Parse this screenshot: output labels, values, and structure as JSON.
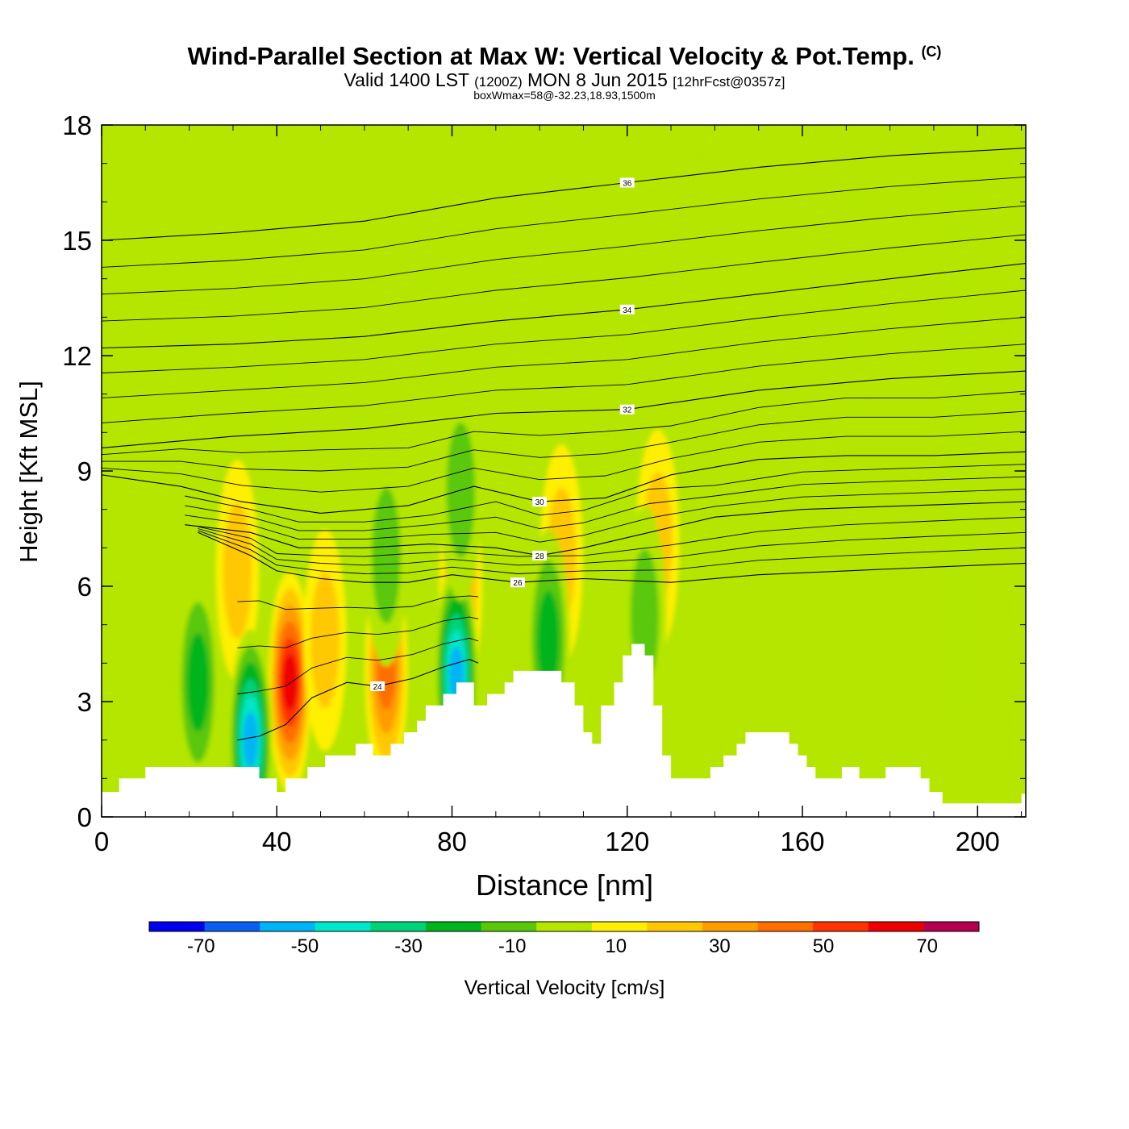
{
  "header": {
    "title": "Wind-Parallel Section at Max W: Vertical Velocity & Pot.Temp.",
    "copyright": "(C)",
    "valid_prefix": "Valid 1400 LST",
    "valid_utc": "(1200Z)",
    "valid_date": "MON 8 Jun 2015",
    "forecast": "[12hrFcst@0357z]",
    "subtitle": "boxWmax=58@-32.23,18.93,1500m"
  },
  "colors": {
    "background_field": "#b4e600",
    "terrain": "#ffffff",
    "isentrope": "#000000",
    "palette": [
      "#0000ee",
      "#0a5ff0",
      "#00b4f5",
      "#00e6c8",
      "#00d27a",
      "#00b41e",
      "#5ac80a",
      "#b4e600",
      "#ffef00",
      "#ffc800",
      "#ff9c00",
      "#ff6e00",
      "#ff3200",
      "#ee0000",
      "#b4004e"
    ]
  },
  "chart_data": {
    "type": "heatmap",
    "title": "Wind-Parallel Section at Max W: Vertical Velocity & Pot.Temp.",
    "xlabel": "Distance [nm]",
    "ylabel": "Height [Kft MSL]",
    "xlim": [
      0,
      211
    ],
    "ylim": [
      0,
      18
    ],
    "x_ticks": [
      "0",
      "40",
      "80",
      "120",
      "160",
      "200"
    ],
    "y_ticks": [
      "0",
      "3",
      "6",
      "9",
      "12",
      "15",
      "18"
    ],
    "colorbar": {
      "label": "Vertical Velocity [cm/s]",
      "boundaries": [
        -80,
        -70,
        -60,
        -50,
        -40,
        -30,
        -20,
        -10,
        0,
        10,
        20,
        30,
        40,
        50,
        60,
        70,
        80
      ],
      "tick_labels": [
        "-70",
        "-50",
        "-30",
        "-10",
        "10",
        "30",
        "50",
        "70"
      ]
    },
    "terrain_profile": [
      [
        0,
        0.65
      ],
      [
        4,
        0.65
      ],
      [
        4,
        1.0
      ],
      [
        10,
        1.0
      ],
      [
        10,
        1.3
      ],
      [
        36,
        1.3
      ],
      [
        36,
        1.0
      ],
      [
        40,
        1.0
      ],
      [
        40,
        0.65
      ],
      [
        42,
        0.65
      ],
      [
        42,
        1.0
      ],
      [
        47,
        1.0
      ],
      [
        47,
        1.3
      ],
      [
        51,
        1.3
      ],
      [
        51,
        1.6
      ],
      [
        58,
        1.6
      ],
      [
        58,
        1.9
      ],
      [
        62,
        1.9
      ],
      [
        62,
        1.6
      ],
      [
        66,
        1.6
      ],
      [
        66,
        1.9
      ],
      [
        69,
        1.9
      ],
      [
        69,
        2.2
      ],
      [
        72,
        2.2
      ],
      [
        72,
        2.5
      ],
      [
        74,
        2.5
      ],
      [
        74,
        2.9
      ],
      [
        78,
        2.9
      ],
      [
        78,
        3.2
      ],
      [
        81,
        3.2
      ],
      [
        81,
        3.5
      ],
      [
        85,
        3.5
      ],
      [
        85,
        2.9
      ],
      [
        88,
        2.9
      ],
      [
        88,
        3.2
      ],
      [
        92,
        3.2
      ],
      [
        92,
        3.5
      ],
      [
        94,
        3.5
      ],
      [
        94,
        3.8
      ],
      [
        105,
        3.8
      ],
      [
        105,
        3.5
      ],
      [
        108,
        3.5
      ],
      [
        108,
        2.9
      ],
      [
        110,
        2.9
      ],
      [
        110,
        2.2
      ],
      [
        112,
        2.2
      ],
      [
        112,
        1.9
      ],
      [
        114,
        1.9
      ],
      [
        114,
        2.9
      ],
      [
        117,
        2.9
      ],
      [
        117,
        3.5
      ],
      [
        119,
        3.5
      ],
      [
        119,
        4.2
      ],
      [
        121,
        4.2
      ],
      [
        121,
        4.5
      ],
      [
        124,
        4.5
      ],
      [
        124,
        4.2
      ],
      [
        126,
        4.2
      ],
      [
        126,
        2.9
      ],
      [
        128,
        2.9
      ],
      [
        128,
        1.6
      ],
      [
        130,
        1.6
      ],
      [
        130,
        1.0
      ],
      [
        139,
        1.0
      ],
      [
        139,
        1.3
      ],
      [
        142,
        1.3
      ],
      [
        142,
        1.6
      ],
      [
        145,
        1.6
      ],
      [
        145,
        1.9
      ],
      [
        147,
        1.9
      ],
      [
        147,
        2.2
      ],
      [
        157,
        2.2
      ],
      [
        157,
        1.9
      ],
      [
        159,
        1.9
      ],
      [
        159,
        1.6
      ],
      [
        161,
        1.6
      ],
      [
        161,
        1.3
      ],
      [
        163,
        1.3
      ],
      [
        163,
        1.0
      ],
      [
        169,
        1.0
      ],
      [
        169,
        1.3
      ],
      [
        173,
        1.3
      ],
      [
        173,
        1.0
      ],
      [
        179,
        1.0
      ],
      [
        179,
        1.3
      ],
      [
        187,
        1.3
      ],
      [
        187,
        1.0
      ],
      [
        189,
        1.0
      ],
      [
        189,
        0.65
      ],
      [
        192,
        0.65
      ],
      [
        192,
        0.35
      ],
      [
        210,
        0.35
      ],
      [
        210,
        0.6
      ],
      [
        211,
        0.6
      ]
    ],
    "updraft_cores": [
      {
        "x": 43,
        "y": 3.5,
        "peak": 60
      },
      {
        "x": 65,
        "y": 3.8,
        "peak": 40
      },
      {
        "x": 82,
        "y": 6.0,
        "peak": 30
      },
      {
        "x": 31,
        "y": 6.4,
        "peak": 20
      },
      {
        "x": 105,
        "y": 6.8,
        "peak": 20
      },
      {
        "x": 127,
        "y": 7.2,
        "peak": 15
      },
      {
        "x": 51,
        "y": 4.6,
        "peak": 20
      }
    ],
    "downdraft_cores": [
      {
        "x": 34,
        "y": 2.0,
        "peak": -60
      },
      {
        "x": 81,
        "y": 3.7,
        "peak": -55
      },
      {
        "x": 102,
        "y": 4.6,
        "peak": -30
      },
      {
        "x": 22,
        "y": 3.5,
        "peak": -25
      },
      {
        "x": 65,
        "y": 6.8,
        "peak": -20
      },
      {
        "x": 82,
        "y": 8.5,
        "peak": -20
      },
      {
        "x": 124,
        "y": 5.2,
        "peak": -20
      }
    ],
    "theta_contours": [
      {
        "label": "24",
        "pts": [
          [
            31,
            2.0
          ],
          [
            36,
            2.1
          ],
          [
            42,
            2.4
          ],
          [
            48,
            3.1
          ],
          [
            56,
            3.5
          ],
          [
            63,
            3.4
          ],
          [
            71,
            3.6
          ],
          [
            78,
            3.9
          ],
          [
            84,
            4.1
          ],
          [
            86,
            4.0
          ]
        ]
      },
      {
        "label": "26",
        "pts": [
          [
            22,
            7.4
          ],
          [
            34,
            6.8
          ],
          [
            40,
            6.4
          ],
          [
            50,
            6.2
          ],
          [
            60,
            6.1
          ],
          [
            70,
            6.1
          ],
          [
            80,
            6.3
          ],
          [
            95,
            6.1
          ],
          [
            110,
            6.2
          ],
          [
            130,
            6.1
          ],
          [
            150,
            6.3
          ],
          [
            170,
            6.4
          ],
          [
            190,
            6.5
          ],
          [
            211,
            6.6
          ]
        ]
      },
      {
        "label": "28",
        "pts": [
          [
            19,
            7.6
          ],
          [
            34,
            7.4
          ],
          [
            45,
            7.0
          ],
          [
            60,
            7.0
          ],
          [
            75,
            7.1
          ],
          [
            90,
            7.0
          ],
          [
            100,
            6.8
          ],
          [
            110,
            7.0
          ],
          [
            125,
            7.4
          ],
          [
            140,
            7.8
          ],
          [
            160,
            8.0
          ],
          [
            185,
            8.1
          ],
          [
            211,
            8.2
          ]
        ]
      },
      {
        "label": "30",
        "pts": [
          [
            0,
            8.9
          ],
          [
            18,
            8.6
          ],
          [
            32,
            8.2
          ],
          [
            50,
            7.9
          ],
          [
            70,
            8.1
          ],
          [
            85,
            8.6
          ],
          [
            100,
            8.2
          ],
          [
            115,
            8.3
          ],
          [
            130,
            8.9
          ],
          [
            150,
            9.3
          ],
          [
            170,
            9.4
          ],
          [
            190,
            9.4
          ],
          [
            211,
            9.5
          ]
        ]
      },
      {
        "label": "32",
        "pts": [
          [
            0,
            9.6
          ],
          [
            30,
            9.9
          ],
          [
            60,
            10.1
          ],
          [
            90,
            10.5
          ],
          [
            120,
            10.6
          ],
          [
            150,
            11.1
          ],
          [
            180,
            11.4
          ],
          [
            211,
            11.6
          ]
        ]
      },
      {
        "label": "34",
        "pts": [
          [
            0,
            12.2
          ],
          [
            30,
            12.3
          ],
          [
            60,
            12.5
          ],
          [
            90,
            12.9
          ],
          [
            120,
            13.2
          ],
          [
            150,
            13.6
          ],
          [
            180,
            14.0
          ],
          [
            211,
            14.4
          ]
        ]
      },
      {
        "label": "36",
        "pts": [
          [
            0,
            15.0
          ],
          [
            30,
            15.2
          ],
          [
            60,
            15.5
          ],
          [
            90,
            16.1
          ],
          [
            120,
            16.5
          ],
          [
            150,
            16.9
          ],
          [
            180,
            17.2
          ],
          [
            211,
            17.4
          ]
        ]
      }
    ]
  }
}
